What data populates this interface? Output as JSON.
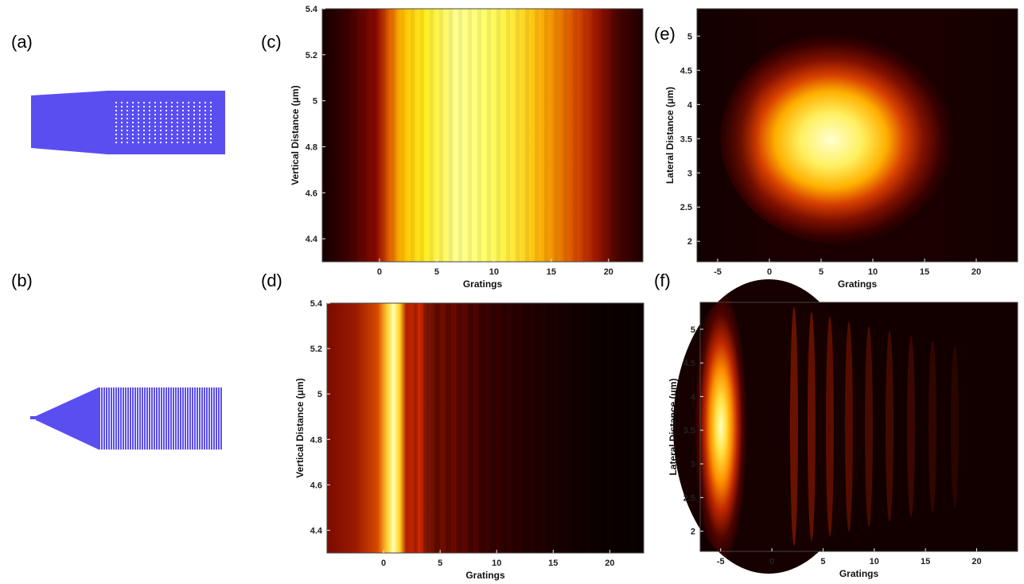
{
  "panel_labels": {
    "a": "(a)",
    "b": "(b)",
    "c": "(c)",
    "d": "(d)",
    "e": "(e)",
    "f": "(f)"
  },
  "colors": {
    "device": "#5b4ef0",
    "heatmap_colormap": "hot"
  },
  "chart_data": [
    {
      "id": "c",
      "type": "heatmap",
      "xlabel": "Gratings",
      "ylabel": "Vertical Distance (μm)",
      "xlim": [
        -5,
        23
      ],
      "ylim": [
        4.3,
        5.4
      ],
      "xticks": [
        0,
        5,
        10,
        15,
        20
      ],
      "yticks": [
        4.4,
        4.6,
        4.8,
        5,
        5.2,
        5.4
      ],
      "intensity_profile_x": [
        [
          -5,
          0.05
        ],
        [
          -3,
          0.1
        ],
        [
          -1,
          0.2
        ],
        [
          0.8,
          0.55
        ],
        [
          1.5,
          0.85
        ],
        [
          2.5,
          0.9
        ],
        [
          4,
          0.95
        ],
        [
          6,
          1.0
        ],
        [
          8,
          0.97
        ],
        [
          10,
          0.92
        ],
        [
          12,
          0.85
        ],
        [
          14,
          0.75
        ],
        [
          16,
          0.6
        ],
        [
          18,
          0.45
        ],
        [
          20,
          0.2
        ],
        [
          22,
          0.1
        ],
        [
          23,
          0.06
        ]
      ]
    },
    {
      "id": "d",
      "type": "heatmap",
      "xlabel": "Gratings",
      "ylabel": "Vertical Distance (μm)",
      "xlim": [
        -5,
        23
      ],
      "ylim": [
        4.3,
        5.4
      ],
      "xticks": [
        0,
        5,
        10,
        15,
        20
      ],
      "yticks": [
        4.4,
        4.6,
        4.8,
        5,
        5.2,
        5.4
      ],
      "intensity_profile_x": [
        [
          -5,
          0.4
        ],
        [
          -3,
          0.45
        ],
        [
          -1,
          0.6
        ],
        [
          0.5,
          0.8
        ],
        [
          1.5,
          1.0
        ],
        [
          2.5,
          0.6
        ],
        [
          4,
          0.5
        ],
        [
          6,
          0.35
        ],
        [
          8,
          0.22
        ],
        [
          10,
          0.12
        ],
        [
          12,
          0.07
        ],
        [
          15,
          0.04
        ],
        [
          23,
          0.01
        ]
      ]
    },
    {
      "id": "e",
      "type": "heatmap",
      "xlabel": "Gratings",
      "ylabel": "Lateral Distance (μm)",
      "xlim": [
        -7,
        24
      ],
      "ylim": [
        1.7,
        5.4
      ],
      "xticks": [
        -5,
        0,
        5,
        10,
        15,
        20
      ],
      "yticks": [
        2,
        2.5,
        3,
        3.5,
        4,
        4.5,
        5
      ],
      "peak_center": {
        "x": 5.5,
        "y": 3.6
      }
    },
    {
      "id": "f",
      "type": "heatmap",
      "xlabel": "Gratings",
      "ylabel": "Lateral Distance (μm)",
      "xlim": [
        -7,
        24
      ],
      "ylim": [
        1.7,
        5.4
      ],
      "xticks": [
        -5,
        0,
        5,
        10,
        15,
        20
      ],
      "yticks": [
        2,
        2.5,
        3,
        3.5,
        4,
        4.5,
        5
      ],
      "peak_center": {
        "x": 0.5,
        "y": 3.6
      }
    }
  ]
}
